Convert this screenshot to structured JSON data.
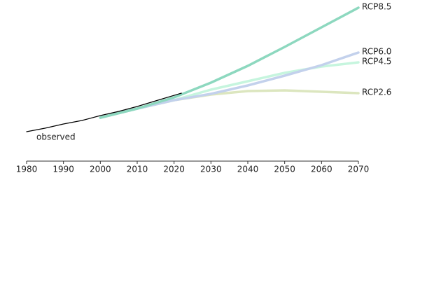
{
  "chart_data": {
    "type": "line",
    "xlim": [
      1980,
      2070
    ],
    "xticks": [
      1980,
      1990,
      2000,
      2010,
      2020,
      2030,
      2040,
      2050,
      2060,
      2070
    ],
    "ylim": [
      0,
      100
    ],
    "series": [
      {
        "name": "RCP2.6",
        "color": "#dce6bf",
        "x": [
          2000,
          2010,
          2020,
          2030,
          2040,
          2050,
          2060,
          2070
        ],
        "values": [
          21,
          27.5,
          33.5,
          37.5,
          40,
          40.5,
          39.5,
          38.5
        ]
      },
      {
        "name": "RCP4.5",
        "color": "#c6f5de",
        "x": [
          2000,
          2010,
          2020,
          2030,
          2040,
          2050,
          2060,
          2070
        ],
        "values": [
          21,
          27.5,
          33.5,
          41,
          47,
          53,
          57.5,
          60.5
        ]
      },
      {
        "name": "RCP6.0",
        "color": "#c3d1ec",
        "x": [
          2000,
          2010,
          2020,
          2030,
          2040,
          2050,
          2060,
          2070
        ],
        "values": [
          21,
          27.5,
          33.5,
          38,
          44,
          51,
          58.5,
          67.5
        ]
      },
      {
        "name": "RCP8.5",
        "color": "#8dd8bf",
        "x": [
          2000,
          2010,
          2020,
          2030,
          2040,
          2050,
          2060,
          2070
        ],
        "values": [
          21,
          27.5,
          35.5,
          46,
          58,
          71.5,
          85.5,
          99.5
        ]
      },
      {
        "name": "observed",
        "color": "#000000",
        "x": [
          1980,
          1985,
          1990,
          1995,
          2000,
          2005,
          2010,
          2015,
          2022
        ],
        "values": [
          11,
          13.5,
          16.5,
          19,
          22.5,
          25.5,
          29,
          33,
          38.5
        ]
      }
    ]
  }
}
